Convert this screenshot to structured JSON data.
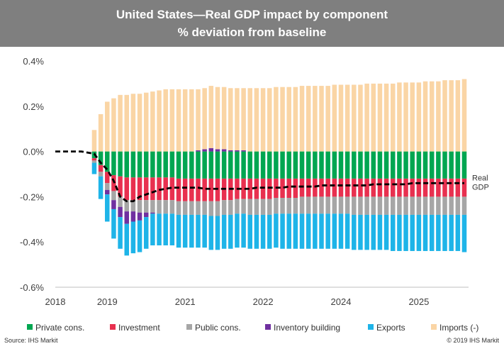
{
  "chart_data": {
    "type": "bar",
    "title": "United States—Real GDP impact by component",
    "subtitle": "% deviation from baseline",
    "xlabel": "",
    "ylabel": "",
    "ylim": [
      -0.6,
      0.4
    ],
    "y_ticks": [
      "0.4%",
      "0.2%",
      "0.0%",
      "-0.2%",
      "-0.4%",
      "-0.6%"
    ],
    "y_tick_values": [
      0.4,
      0.2,
      0.0,
      -0.2,
      -0.4,
      -0.6
    ],
    "x_ticks": [
      "2018",
      "2019",
      "2021",
      "2022",
      "2024",
      "2025"
    ],
    "x_tick_values": [
      2018.0,
      2019.0,
      2020.5,
      2022.0,
      2023.5,
      2025.0
    ],
    "xlim": [
      2018.0,
      2025.875
    ],
    "stacked": true,
    "grid": false,
    "legend_position": "bottom",
    "x": [
      2018.75,
      2018.875,
      2019.0,
      2019.125,
      2019.25,
      2019.375,
      2019.5,
      2019.625,
      2019.75,
      2019.875,
      2020.0,
      2020.125,
      2020.25,
      2020.375,
      2020.5,
      2020.625,
      2020.75,
      2020.875,
      2021.0,
      2021.125,
      2021.25,
      2021.375,
      2021.5,
      2021.625,
      2021.75,
      2021.875,
      2022.0,
      2022.125,
      2022.25,
      2022.375,
      2022.5,
      2022.625,
      2022.75,
      2022.875,
      2023.0,
      2023.125,
      2023.25,
      2023.375,
      2023.5,
      2023.625,
      2023.75,
      2023.875,
      2024.0,
      2024.125,
      2024.25,
      2024.375,
      2024.5,
      2024.625,
      2024.75,
      2024.875,
      2025.0,
      2025.125,
      2025.25,
      2025.375,
      2025.5,
      2025.625,
      2025.75,
      2025.875
    ],
    "series": [
      {
        "name": "Private cons.",
        "color": "#00a651",
        "values": [
          -0.03,
          -0.06,
          -0.09,
          -0.105,
          -0.11,
          -0.115,
          -0.115,
          -0.115,
          -0.115,
          -0.115,
          -0.115,
          -0.115,
          -0.115,
          -0.12,
          -0.12,
          -0.12,
          -0.12,
          -0.12,
          -0.12,
          -0.12,
          -0.12,
          -0.12,
          -0.12,
          -0.12,
          -0.12,
          -0.12,
          -0.12,
          -0.12,
          -0.12,
          -0.12,
          -0.12,
          -0.12,
          -0.12,
          -0.12,
          -0.12,
          -0.12,
          -0.12,
          -0.12,
          -0.12,
          -0.12,
          -0.12,
          -0.12,
          -0.12,
          -0.12,
          -0.12,
          -0.12,
          -0.12,
          -0.12,
          -0.12,
          -0.12,
          -0.12,
          -0.12,
          -0.12,
          -0.12,
          -0.12,
          -0.12,
          -0.12,
          -0.12
        ]
      },
      {
        "name": "Investment",
        "color": "#e8304f",
        "values": [
          -0.01,
          -0.03,
          -0.05,
          -0.07,
          -0.09,
          -0.1,
          -0.1,
          -0.1,
          -0.1,
          -0.1,
          -0.1,
          -0.1,
          -0.1,
          -0.1,
          -0.1,
          -0.1,
          -0.1,
          -0.1,
          -0.1,
          -0.1,
          -0.095,
          -0.095,
          -0.09,
          -0.09,
          -0.09,
          -0.09,
          -0.09,
          -0.09,
          -0.085,
          -0.085,
          -0.085,
          -0.085,
          -0.08,
          -0.08,
          -0.08,
          -0.08,
          -0.08,
          -0.08,
          -0.08,
          -0.08,
          -0.08,
          -0.08,
          -0.08,
          -0.08,
          -0.08,
          -0.08,
          -0.08,
          -0.08,
          -0.08,
          -0.08,
          -0.08,
          -0.08,
          -0.08,
          -0.08,
          -0.08,
          -0.08,
          -0.08,
          -0.08
        ]
      },
      {
        "name": "Public cons.",
        "color": "#a6a6a6",
        "values": [
          -0.01,
          -0.02,
          -0.03,
          -0.04,
          -0.045,
          -0.05,
          -0.05,
          -0.055,
          -0.055,
          -0.055,
          -0.06,
          -0.06,
          -0.06,
          -0.06,
          -0.06,
          -0.06,
          -0.06,
          -0.06,
          -0.065,
          -0.065,
          -0.065,
          -0.065,
          -0.065,
          -0.065,
          -0.07,
          -0.07,
          -0.07,
          -0.07,
          -0.07,
          -0.07,
          -0.07,
          -0.07,
          -0.075,
          -0.075,
          -0.075,
          -0.075,
          -0.075,
          -0.075,
          -0.075,
          -0.075,
          -0.08,
          -0.08,
          -0.08,
          -0.08,
          -0.08,
          -0.08,
          -0.08,
          -0.08,
          -0.08,
          -0.08,
          -0.08,
          -0.08,
          -0.08,
          -0.08,
          -0.08,
          -0.08,
          -0.08,
          -0.08
        ]
      },
      {
        "name": "Inventory building",
        "color": "#7030a0",
        "values": [
          0.0,
          0.0,
          -0.02,
          -0.04,
          -0.045,
          -0.055,
          -0.045,
          -0.035,
          -0.02,
          -0.005,
          0.0,
          0.0,
          0.0,
          0.0,
          0.0,
          0.0,
          0.005,
          0.01,
          0.015,
          0.01,
          0.01,
          0.005,
          0.005,
          0.005,
          0.0,
          0.0,
          0.0,
          0.0,
          0.0,
          0.0,
          0.0,
          0.0,
          0.0,
          0.0,
          0.0,
          0.0,
          0.0,
          0.0,
          0.0,
          0.0,
          0.0,
          0.0,
          0.0,
          0.0,
          0.0,
          0.0,
          0.0,
          0.0,
          0.0,
          0.0,
          0.0,
          0.0,
          0.0,
          0.0,
          0.0,
          0.0,
          0.0,
          0.0
        ]
      },
      {
        "name": "Exports",
        "color": "#1eb4e8",
        "values": [
          -0.05,
          -0.1,
          -0.12,
          -0.13,
          -0.14,
          -0.14,
          -0.14,
          -0.14,
          -0.14,
          -0.14,
          -0.14,
          -0.14,
          -0.14,
          -0.145,
          -0.145,
          -0.145,
          -0.145,
          -0.145,
          -0.15,
          -0.15,
          -0.15,
          -0.15,
          -0.15,
          -0.15,
          -0.15,
          -0.15,
          -0.15,
          -0.15,
          -0.15,
          -0.155,
          -0.155,
          -0.155,
          -0.155,
          -0.155,
          -0.155,
          -0.155,
          -0.155,
          -0.155,
          -0.155,
          -0.155,
          -0.155,
          -0.155,
          -0.155,
          -0.155,
          -0.155,
          -0.155,
          -0.16,
          -0.16,
          -0.16,
          -0.16,
          -0.16,
          -0.16,
          -0.16,
          -0.16,
          -0.16,
          -0.16,
          -0.16,
          -0.165
        ]
      },
      {
        "name": "Imports (-)",
        "color": "#fad5a5",
        "values": [
          0.095,
          0.165,
          0.22,
          0.235,
          0.25,
          0.25,
          0.255,
          0.255,
          0.26,
          0.265,
          0.27,
          0.275,
          0.275,
          0.275,
          0.275,
          0.275,
          0.27,
          0.27,
          0.275,
          0.275,
          0.275,
          0.275,
          0.275,
          0.275,
          0.28,
          0.28,
          0.28,
          0.28,
          0.285,
          0.285,
          0.285,
          0.285,
          0.29,
          0.29,
          0.29,
          0.29,
          0.29,
          0.295,
          0.295,
          0.295,
          0.295,
          0.295,
          0.3,
          0.3,
          0.3,
          0.3,
          0.3,
          0.305,
          0.305,
          0.305,
          0.305,
          0.31,
          0.31,
          0.31,
          0.315,
          0.315,
          0.315,
          0.32
        ]
      }
    ],
    "line": {
      "name": "Real GDP",
      "color": "#000000",
      "label_lines": [
        "Real",
        "GDP"
      ],
      "x": [
        2018.0,
        2018.25,
        2018.5,
        2018.75,
        2018.875,
        2019.0,
        2019.125,
        2019.25,
        2019.375,
        2019.5,
        2019.625,
        2019.75,
        2019.875,
        2020.0,
        2020.125,
        2020.25,
        2020.375,
        2020.5,
        2020.625,
        2020.75,
        2020.875,
        2021.0,
        2021.125,
        2021.25,
        2021.375,
        2021.5,
        2021.625,
        2021.75,
        2021.875,
        2022.0,
        2022.125,
        2022.25,
        2022.375,
        2022.5,
        2022.625,
        2022.75,
        2022.875,
        2023.0,
        2023.125,
        2023.25,
        2023.375,
        2023.5,
        2023.625,
        2023.75,
        2023.875,
        2024.0,
        2024.125,
        2024.25,
        2024.375,
        2024.5,
        2024.625,
        2024.75,
        2024.875,
        2025.0,
        2025.125,
        2025.25,
        2025.375,
        2025.5,
        2025.625,
        2025.75,
        2025.875
      ],
      "y": [
        0.0,
        0.0,
        0.0,
        -0.01,
        -0.05,
        -0.08,
        -0.13,
        -0.2,
        -0.22,
        -0.22,
        -0.2,
        -0.19,
        -0.18,
        -0.17,
        -0.165,
        -0.16,
        -0.16,
        -0.16,
        -0.16,
        -0.16,
        -0.165,
        -0.165,
        -0.165,
        -0.165,
        -0.165,
        -0.165,
        -0.165,
        -0.165,
        -0.16,
        -0.16,
        -0.16,
        -0.16,
        -0.16,
        -0.155,
        -0.155,
        -0.155,
        -0.155,
        -0.155,
        -0.15,
        -0.15,
        -0.15,
        -0.15,
        -0.15,
        -0.15,
        -0.15,
        -0.15,
        -0.145,
        -0.145,
        -0.145,
        -0.145,
        -0.145,
        -0.145,
        -0.14,
        -0.14,
        -0.14,
        -0.14,
        -0.14,
        -0.14,
        -0.14,
        -0.14,
        -0.14
      ]
    }
  },
  "footer": {
    "source": "Source: IHS Markit",
    "copyright": "© 2019 IHS Markit"
  }
}
